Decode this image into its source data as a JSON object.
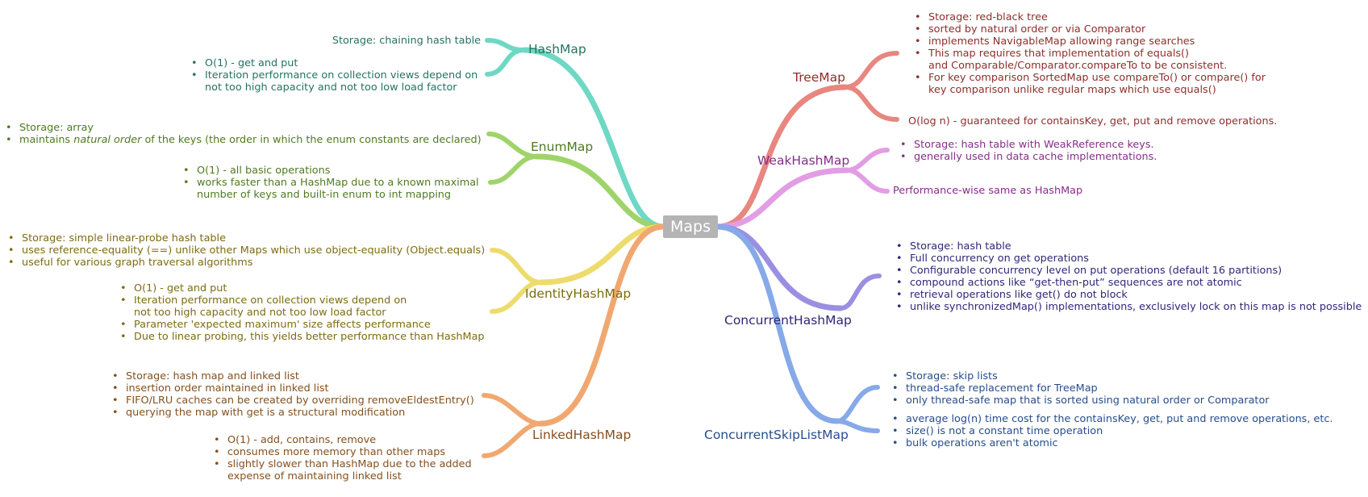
{
  "root": "Maps",
  "colors": {
    "HashMap": "#6fd8c4",
    "EnumMap": "#9fd46a",
    "IdentityHashMap": "#eddc6c",
    "LinkedHashMap": "#f0a870",
    "TreeMap": "#e88680",
    "WeakHashMap": "#e29de4",
    "ConcurrentHashMap": "#9a8fe2",
    "ConcurrentSkipListMap": "#86a9e8"
  },
  "branches": {
    "hashmap": {
      "label": "HashMap",
      "storage": "Storage: chaining hash table",
      "items": [
        "O(1) - get and put",
        "Iteration performance on collection views depend on",
        "not too high capacity and not too low load factor"
      ]
    },
    "enummap": {
      "label": "EnumMap",
      "items1": [
        "Storage: array"
      ],
      "natural_pre": "maintains ",
      "natural_em": "natural order",
      "natural_post": " of the keys (the order in which the enum constants are declared)",
      "items2": [
        "O(1) - all basic operations",
        "works faster than a HashMap due to a known maximal",
        "number of keys and built-in enum to int mapping"
      ]
    },
    "identity": {
      "label": "IdentityHashMap",
      "items1": [
        "Storage: simple linear-probe hash table",
        "uses reference-equality (==) unlike other Maps which use object-equality (Object.equals)",
        "useful for various graph traversal algorithms"
      ],
      "items2": [
        "O(1) - get and put",
        "Iteration performance on collection views depend on",
        "not too high capacity and not too low load factor",
        "Parameter 'expected maximum' size affects performance",
        "Due to linear probing, this yields better performance than HashMap"
      ]
    },
    "linked": {
      "label": "LinkedHashMap",
      "items1": [
        "Storage: hash map and linked list",
        "insertion order maintained in linked list",
        "FIFO/LRU caches can be created by overriding removeEldestEntry()",
        "querying the map with get is a structural modification"
      ],
      "items2": [
        "O(1) - add, contains, remove",
        "consumes more memory than other maps",
        "slightly slower than HashMap due to the added",
        "expense of maintaining linked list"
      ]
    },
    "tree": {
      "label": "TreeMap",
      "items": [
        "Storage: red-black tree",
        "sorted by natural order or via Comparator",
        "implements NavigableMap allowing range searches",
        "This map requires that implementation of equals()",
        "and Comparable/Comparator.compareTo to be consistent.",
        "For key comparison SortedMap use compareTo() or compare() for",
        "key comparison unlike regular maps which use equals()"
      ],
      "perf": "O(log n) - guaranteed for containsKey, get, put and remove operations."
    },
    "weak": {
      "label": "WeakHashMap",
      "items": [
        "Storage: hash table with WeakReference keys.",
        "generally used in data cache implementations."
      ],
      "perf": "Performance-wise same as HashMap"
    },
    "concurrent": {
      "label": "ConcurrentHashMap",
      "items": [
        "Storage: hash table",
        "Full concurrency on get operations",
        "Configurable concurrency level on put operations (default 16 partitions)",
        "compound actions like “get-then-put” sequences are not atomic",
        "retrieval operations like get() do not block",
        "unlike synchronizedMap() implementations, exclusively lock on this map is not possible"
      ]
    },
    "skiplist": {
      "label": "ConcurrentSkipListMap",
      "items1": [
        "Storage: skip lists",
        "thread-safe replacement for TreeMap",
        "only thread-safe map that is sorted using natural order or Comparator"
      ],
      "items2": [
        "average log(n) time cost for the containsKey, get, put and remove operations, etc.",
        "size() is not a constant time operation",
        "bulk operations aren't atomic"
      ]
    }
  }
}
